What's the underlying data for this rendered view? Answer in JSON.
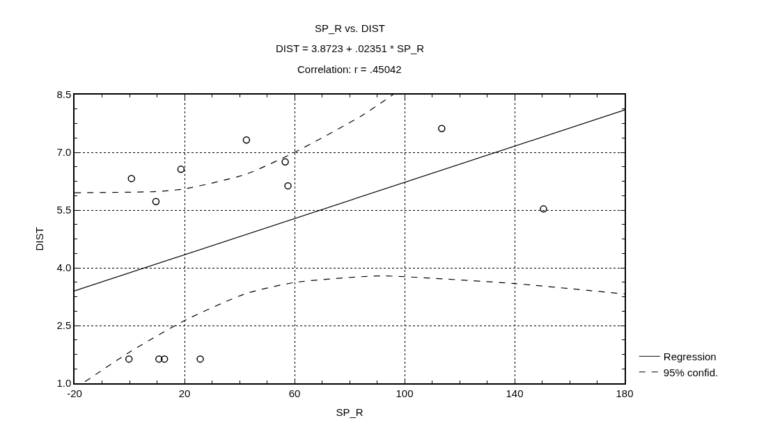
{
  "chart_data": {
    "type": "scatter",
    "title": "SP_R vs. DIST",
    "subtitle": "DIST = 3.8723 + .02351 * SP_R",
    "annotations": [
      "Correlation: r = .45042"
    ],
    "xlabel": "SP_R",
    "ylabel": "DIST",
    "x": [
      0.7,
      9.6,
      18.7,
      42.5,
      56.6,
      57.6,
      -0.2,
      10.7,
      12.7,
      25.7,
      113.5,
      150.5
    ],
    "series": [
      {
        "color": "#000000",
        "marker": "circle",
        "values": [
          6.32,
          5.72,
          6.56,
          7.32,
          6.75,
          6.13,
          1.63,
          1.63,
          1.63,
          1.63,
          7.62,
          5.53
        ]
      },
      {
        "name": "Regression",
        "type": "line",
        "color": "#000000",
        "line_style": "solid",
        "marker": "none",
        "x": [
          -20,
          180
        ],
        "values": [
          3.4,
          8.1
        ]
      },
      {
        "name": "95% confid.",
        "type": "line",
        "color": "#000000",
        "line_style": "dashed",
        "marker": "none",
        "x": [
          -20,
          9.5,
          20,
          42.3,
          60,
          84.4,
          95.8
        ],
        "values": [
          5.95,
          5.98,
          6.05,
          6.43,
          7.0,
          7.95,
          8.5
        ]
      },
      {
        "type": "line",
        "color": "#000000",
        "line_style": "dashed",
        "marker": "none",
        "x": [
          -16.2,
          -0.2,
          20,
          42.3,
          60,
          84.4,
          92,
          100,
          140,
          180
        ],
        "values": [
          1.04,
          1.8,
          2.63,
          3.33,
          3.62,
          3.77,
          3.79,
          3.77,
          3.59,
          3.32
        ]
      }
    ],
    "xlim": [
      -20,
      180
    ],
    "xticks": [
      -20,
      20,
      60,
      100,
      140,
      180
    ],
    "ylim": [
      1.0,
      8.5
    ],
    "yticks": [
      {
        "value": 1.0,
        "label": "1.0"
      },
      {
        "value": 2.5,
        "label": "2.5"
      },
      {
        "value": 4.0,
        "label": "4.0"
      },
      {
        "value": 5.5,
        "label": "5.5"
      },
      {
        "value": 7.0,
        "label": "7.0"
      },
      {
        "value": 8.5,
        "label": "8.5"
      }
    ],
    "grid": true,
    "legend": "bottom right"
  }
}
